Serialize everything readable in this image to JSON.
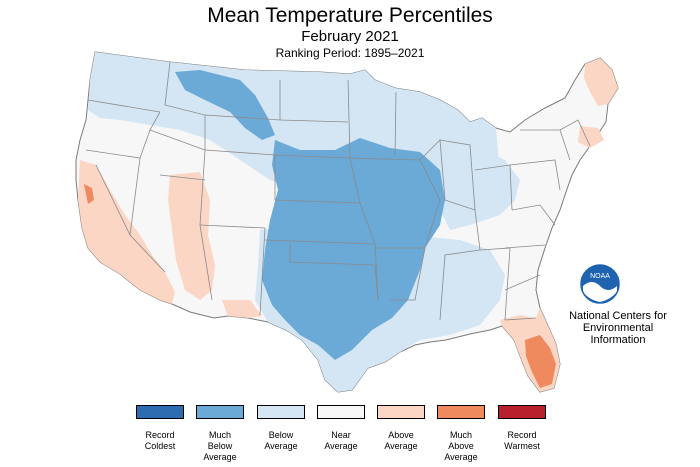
{
  "title": "Mean Temperature Percentiles",
  "subtitle": "February 2021",
  "period": "Ranking Period: 1895–2021",
  "org": {
    "logo_text": "NOAA",
    "lines": [
      "National Centers for",
      "Environmental",
      "Information"
    ]
  },
  "colors": {
    "record_coldest": "#2b6cb0",
    "much_below": "#6ba9d6",
    "below": "#d4e6f4",
    "near": "#f7f7f7",
    "above": "#fbd6c4",
    "much_above": "#ee8a5e",
    "record_warmest": "#b8202e",
    "border": "#888888"
  },
  "legend": [
    {
      "label1": "Record",
      "label2": "Coldest",
      "label3": "",
      "color": "#2b6cb0"
    },
    {
      "label1": "Much",
      "label2": "Below",
      "label3": "Average",
      "color": "#6ba9d6"
    },
    {
      "label1": "Below",
      "label2": "Average",
      "label3": "",
      "color": "#d4e6f4"
    },
    {
      "label1": "Near",
      "label2": "Average",
      "label3": "",
      "color": "#f7f7f7"
    },
    {
      "label1": "Above",
      "label2": "Average",
      "label3": "",
      "color": "#fbd6c4"
    },
    {
      "label1": "Much",
      "label2": "Above",
      "label3": "Average",
      "color": "#ee8a5e"
    },
    {
      "label1": "Record",
      "label2": "Warmest",
      "label3": "",
      "color": "#b8202e"
    }
  ]
}
